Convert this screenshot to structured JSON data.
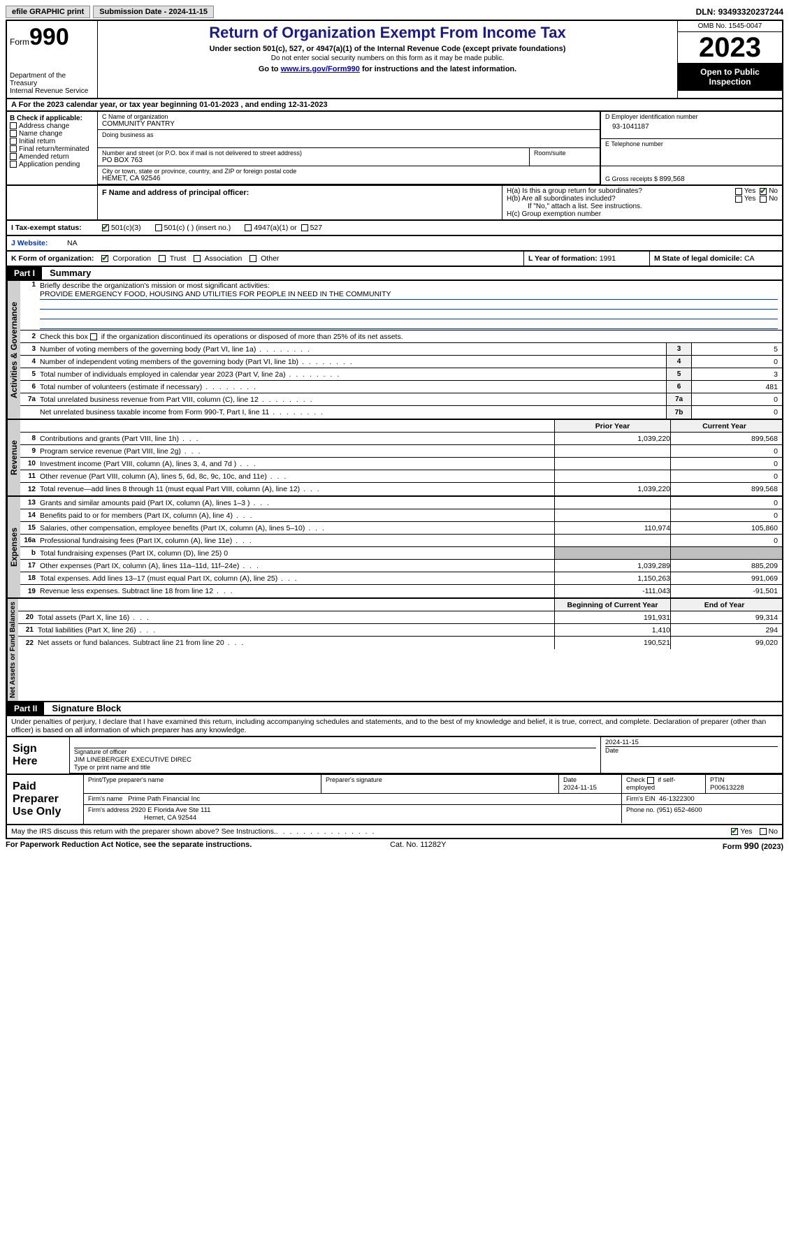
{
  "topbar": {
    "efile": "efile GRAPHIC print",
    "subdate_label": "Submission Date - ",
    "subdate": "2024-11-15",
    "dln_label": "DLN: ",
    "dln": "93493320237244"
  },
  "header": {
    "form_label": "Form",
    "form_num": "990",
    "dept": "Department of the Treasury\nInternal Revenue Service",
    "title": "Return of Organization Exempt From Income Tax",
    "sub1": "Under section 501(c), 527, or 4947(a)(1) of the Internal Revenue Code (except private foundations)",
    "sub2": "Do not enter social security numbers on this form as it may be made public.",
    "sub3_pre": "Go to ",
    "sub3_link": "www.irs.gov/Form990",
    "sub3_post": " for instructions and the latest information.",
    "omb": "OMB No. 1545-0047",
    "year": "2023",
    "open": "Open to Public Inspection"
  },
  "rowA": {
    "pre": "A  For the 2023 calendar year, or tax year beginning ",
    "begin": "01-01-2023",
    "mid": "   , and ending ",
    "end": "12-31-2023"
  },
  "colB": {
    "hdr": "B Check if applicable:",
    "items": [
      "Address change",
      "Name change",
      "Initial return",
      "Final return/terminated",
      "Amended return",
      "Application pending"
    ]
  },
  "colC": {
    "name_lbl": "C Name of organization",
    "name": "COMMUNITY PANTRY",
    "dba_lbl": "Doing business as",
    "street_lbl": "Number and street (or P.O. box if mail is not delivered to street address)",
    "room_lbl": "Room/suite",
    "street": "PO BOX 763",
    "city_lbl": "City or town, state or province, country, and ZIP or foreign postal code",
    "city": "HEMET, CA  92546"
  },
  "colD": {
    "ein_lbl": "D Employer identification number",
    "ein": "93-1041187",
    "tel_lbl": "E Telephone number",
    "gross_lbl": "G Gross receipts $ ",
    "gross": "899,568"
  },
  "rowF": {
    "lbl": "F  Name and address of principal officer:"
  },
  "colH": {
    "ha_lbl": "H(a)  Is this a group return for subordinates?",
    "hb_lbl": "H(b)  Are all subordinates included?",
    "hb_note": "If \"No,\" attach a list. See instructions.",
    "hc_lbl": "H(c)  Group exemption number",
    "yes": "Yes",
    "no": "No"
  },
  "rowI": {
    "lbl": "I   Tax-exempt status:",
    "opts": [
      "501(c)(3)",
      "501(c) (  ) (insert no.)",
      "4947(a)(1) or",
      "527"
    ]
  },
  "rowJ": {
    "lbl": "J   Website:",
    "val": "NA"
  },
  "rowK": {
    "lbl": "K Form of organization:",
    "opts": [
      "Corporation",
      "Trust",
      "Association",
      "Other"
    ],
    "L_lbl": "L Year of formation: ",
    "L_val": "1991",
    "M_lbl": "M State of legal domicile: ",
    "M_val": "CA"
  },
  "part1": {
    "hdr": "Part I",
    "title": "Summary",
    "q1_lbl": "Briefly describe the organization's mission or most significant activities:",
    "q1_val": "PROVIDE EMERGENCY FOOD, HOUSING AND UTILITIES FOR PEOPLE IN NEED IN THE COMMUNITY",
    "q2": "Check this box       if the organization discontinued its operations or disposed of more than 25% of its net assets.",
    "sections": {
      "gov": "Activities & Governance",
      "rev": "Revenue",
      "exp": "Expenses",
      "net": "Net Assets or Fund Balances"
    },
    "lines_gov": [
      {
        "n": "3",
        "t": "Number of voting members of the governing body (Part VI, line 1a)",
        "box": "3",
        "v": "5"
      },
      {
        "n": "4",
        "t": "Number of independent voting members of the governing body (Part VI, line 1b)",
        "box": "4",
        "v": "0"
      },
      {
        "n": "5",
        "t": "Total number of individuals employed in calendar year 2023 (Part V, line 2a)",
        "box": "5",
        "v": "3"
      },
      {
        "n": "6",
        "t": "Total number of volunteers (estimate if necessary)",
        "box": "6",
        "v": "481"
      },
      {
        "n": "7a",
        "t": "Total unrelated business revenue from Part VIII, column (C), line 12",
        "box": "7a",
        "v": "0"
      },
      {
        "n": "",
        "t": "Net unrelated business taxable income from Form 990-T, Part I, line 11",
        "box": "7b",
        "v": "0"
      }
    ],
    "col_prior": "Prior Year",
    "col_curr": "Current Year",
    "lines_rev": [
      {
        "n": "8",
        "t": "Contributions and grants (Part VIII, line 1h)",
        "p": "1,039,220",
        "c": "899,568"
      },
      {
        "n": "9",
        "t": "Program service revenue (Part VIII, line 2g)",
        "p": "",
        "c": "0"
      },
      {
        "n": "10",
        "t": "Investment income (Part VIII, column (A), lines 3, 4, and 7d )",
        "p": "",
        "c": "0"
      },
      {
        "n": "11",
        "t": "Other revenue (Part VIII, column (A), lines 5, 6d, 8c, 9c, 10c, and 11e)",
        "p": "",
        "c": "0"
      },
      {
        "n": "12",
        "t": "Total revenue—add lines 8 through 11 (must equal Part VIII, column (A), line 12)",
        "p": "1,039,220",
        "c": "899,568"
      }
    ],
    "lines_exp": [
      {
        "n": "13",
        "t": "Grants and similar amounts paid (Part IX, column (A), lines 1–3 )",
        "p": "",
        "c": "0"
      },
      {
        "n": "14",
        "t": "Benefits paid to or for members (Part IX, column (A), line 4)",
        "p": "",
        "c": "0"
      },
      {
        "n": "15",
        "t": "Salaries, other compensation, employee benefits (Part IX, column (A), lines 5–10)",
        "p": "110,974",
        "c": "105,860"
      },
      {
        "n": "16a",
        "t": "Professional fundraising fees (Part IX, column (A), line 11e)",
        "p": "",
        "c": "0"
      },
      {
        "n": "b",
        "t": "Total fundraising expenses (Part IX, column (D), line 25) 0",
        "p": "GREY",
        "c": "GREY"
      },
      {
        "n": "17",
        "t": "Other expenses (Part IX, column (A), lines 11a–11d, 11f–24e)",
        "p": "1,039,289",
        "c": "885,209"
      },
      {
        "n": "18",
        "t": "Total expenses. Add lines 13–17 (must equal Part IX, column (A), line 25)",
        "p": "1,150,263",
        "c": "991,069"
      },
      {
        "n": "19",
        "t": "Revenue less expenses. Subtract line 18 from line 12",
        "p": "-111,043",
        "c": "-91,501"
      }
    ],
    "col_begin": "Beginning of Current Year",
    "col_end": "End of Year",
    "lines_net": [
      {
        "n": "20",
        "t": "Total assets (Part X, line 16)",
        "p": "191,931",
        "c": "99,314"
      },
      {
        "n": "21",
        "t": "Total liabilities (Part X, line 26)",
        "p": "1,410",
        "c": "294"
      },
      {
        "n": "22",
        "t": "Net assets or fund balances. Subtract line 21 from line 20",
        "p": "190,521",
        "c": "99,020"
      }
    ]
  },
  "part2": {
    "hdr": "Part II",
    "title": "Signature Block",
    "decl": "Under penalties of perjury, I declare that I have examined this return, including accompanying schedules and statements, and to the best of my knowledge and belief, it is true, correct, and complete. Declaration of preparer (other than officer) is based on all information of which preparer has any knowledge.",
    "sign_here": "Sign Here",
    "sig_officer_lbl": "Signature of officer",
    "sig_officer": "JIM LINEBERGER  EXECUTIVE DIREC",
    "sig_type_lbl": "Type or print name and title",
    "sig_date_lbl": "Date",
    "sig_date": "2024-11-15",
    "paid": "Paid Preparer Use Only",
    "prep_name_lbl": "Print/Type preparer's name",
    "prep_sig_lbl": "Preparer's signature",
    "prep_date_lbl": "Date",
    "prep_date": "2024-11-15",
    "prep_check_lbl": "Check         if self-employed",
    "ptin_lbl": "PTIN",
    "ptin": "P00613228",
    "firm_name_lbl": "Firm's name",
    "firm_name": "Prime Path Financial Inc",
    "firm_ein_lbl": "Firm's EIN",
    "firm_ein": "46-1322300",
    "firm_addr_lbl": "Firm's address",
    "firm_addr1": "2920 E Florida Ave Ste 111",
    "firm_addr2": "Hemet, CA  92544",
    "firm_phone_lbl": "Phone no.",
    "firm_phone": "(951) 652-4600",
    "discuss": "May the IRS discuss this return with the preparer shown above? See Instructions.",
    "yes": "Yes",
    "no": "No"
  },
  "footer": {
    "left": "For Paperwork Reduction Act Notice, see the separate instructions.",
    "mid": "Cat. No. 11282Y",
    "right": "Form 990 (2023)"
  }
}
